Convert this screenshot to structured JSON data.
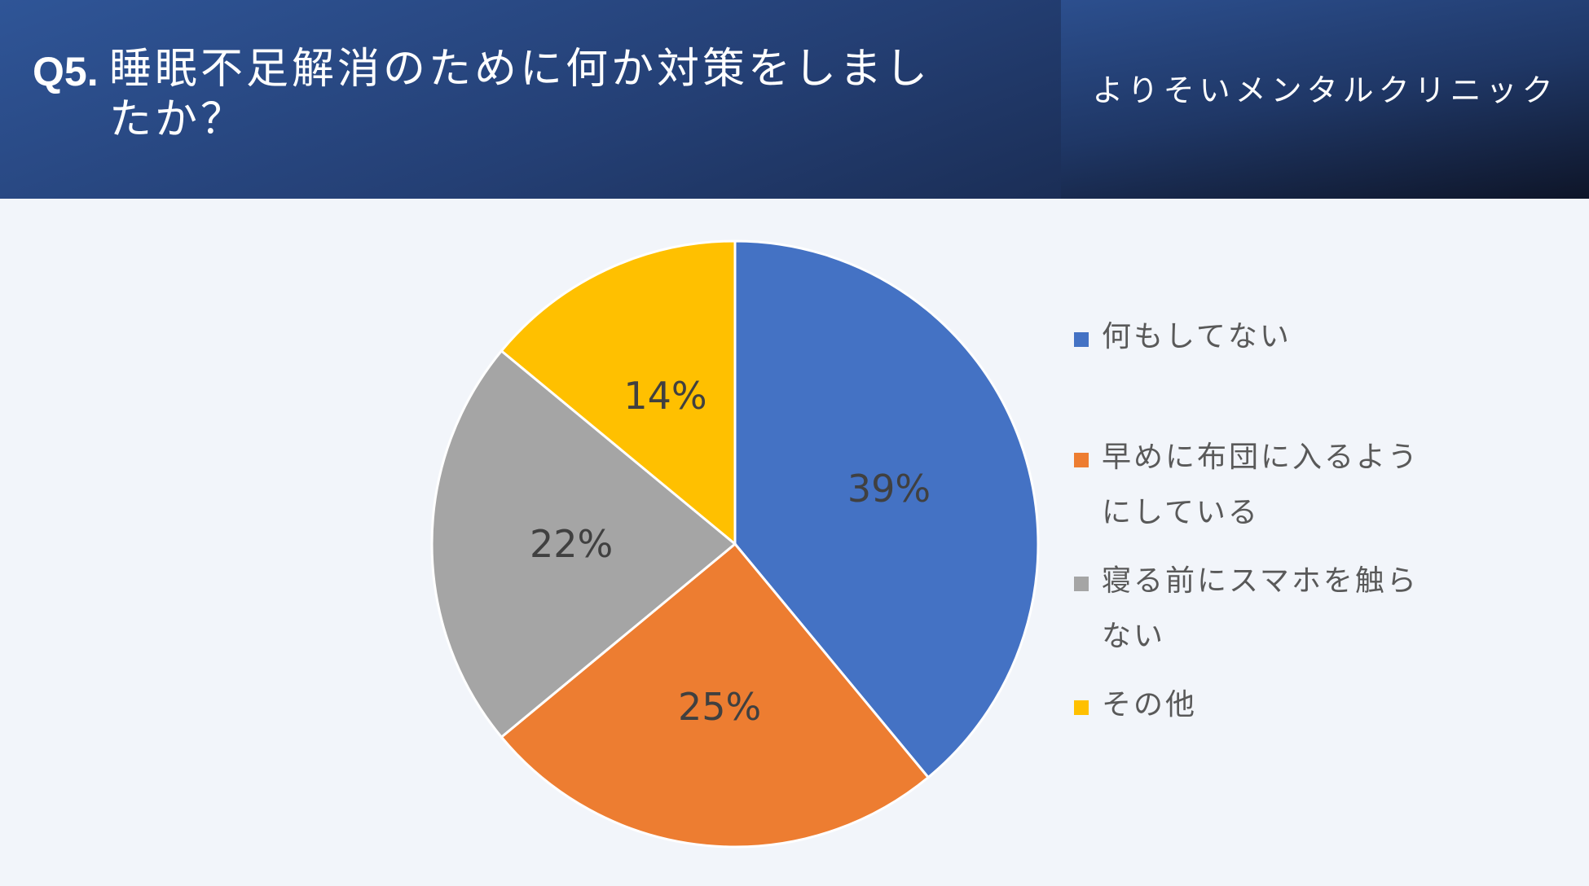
{
  "header": {
    "question_number": "Q5.",
    "question_text": "睡眠不足解消のために何か対策をしましたか？",
    "clinic_name": "よりそいメンタルクリニック"
  },
  "chart_data": {
    "type": "pie",
    "title": "",
    "labels": [
      "何もしてない",
      "早めに布団に入るようにしている",
      "寝る前にスマホを触らない",
      "その他"
    ],
    "values": [
      39,
      25,
      22,
      14
    ],
    "data_labels": [
      "39%",
      "25%",
      "22%",
      "14%"
    ],
    "colors": [
      "#4472c4",
      "#ed7d31",
      "#a5a5a5",
      "#ffc000"
    ],
    "start": "12 o'clock, clockwise",
    "legend_position": "right"
  }
}
